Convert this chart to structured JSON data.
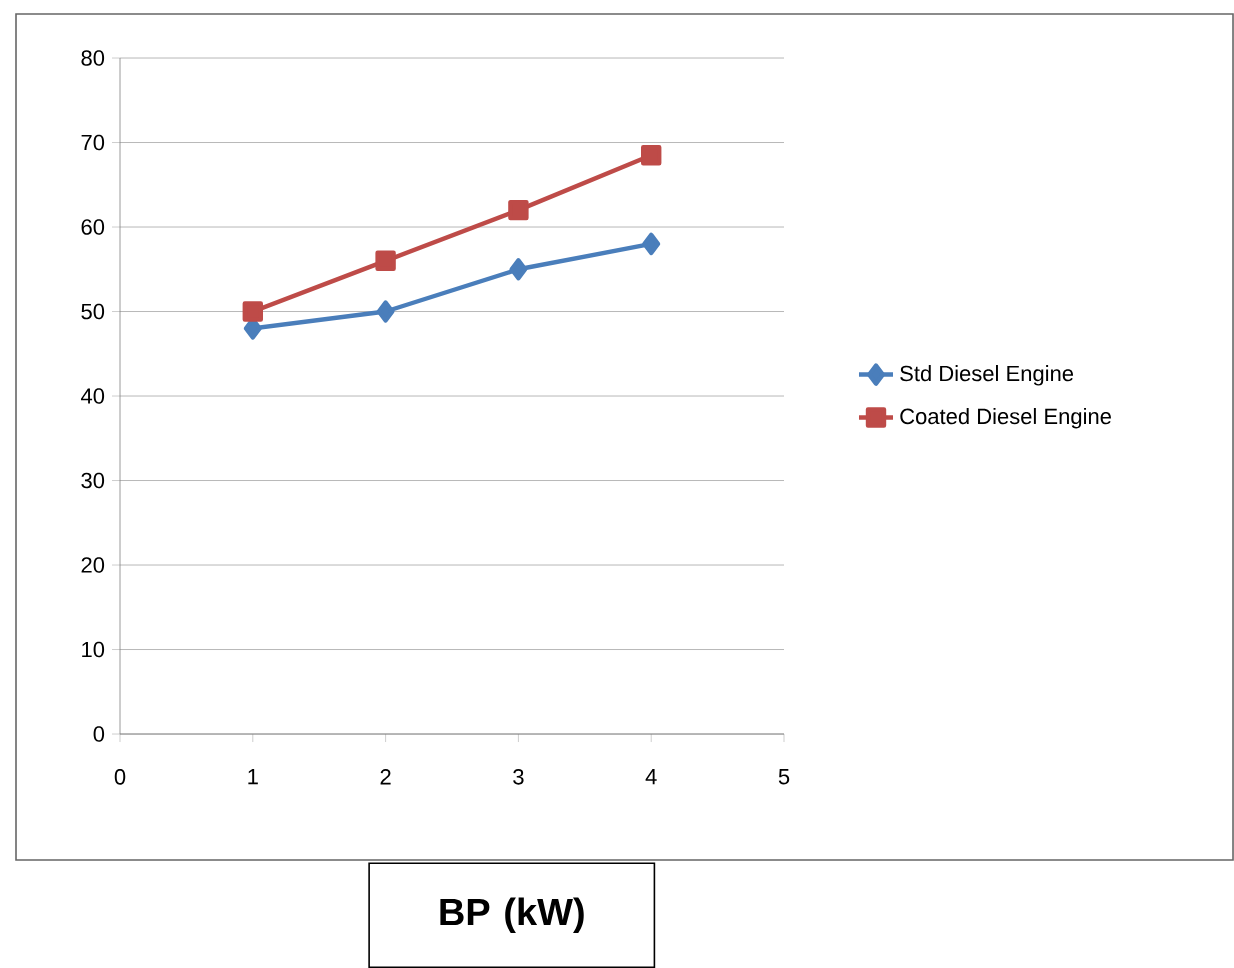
{
  "chart_data": {
    "type": "line",
    "xlabel": "BP (kW)",
    "x": [
      1,
      2,
      3,
      4
    ],
    "series": [
      {
        "name": "Std Diesel Engine",
        "color": "#4a7ebb",
        "marker": "diamond",
        "values": [
          48,
          50,
          55,
          58
        ]
      },
      {
        "name": "Coated Diesel Engine",
        "color": "#be4b48",
        "marker": "square",
        "values": [
          50,
          56,
          62,
          68.5
        ]
      }
    ],
    "xlim": [
      0,
      5
    ],
    "xticks": [
      0,
      1,
      2,
      3,
      4,
      5
    ],
    "ylim": [
      0,
      80
    ],
    "yticks": [
      0,
      10,
      20,
      30,
      40,
      50,
      60,
      70,
      80
    ],
    "grid": "y",
    "legend": "right",
    "line_style": "solid"
  }
}
